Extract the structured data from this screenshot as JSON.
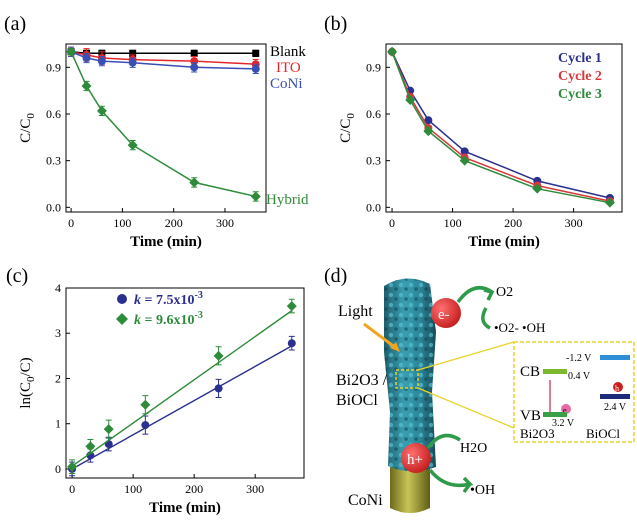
{
  "chart_data": [
    {
      "panel": "(a)",
      "type": "line",
      "xlabel": "Time (min)",
      "ylabel": "C/C0",
      "xlim": [
        -10,
        380
      ],
      "ylim": [
        -0.03,
        1.05
      ],
      "xticks": [
        "0",
        "100",
        "200",
        "300"
      ],
      "yticks": [
        "0.0",
        "0.3",
        "0.6",
        "0.9"
      ],
      "legend_placement": "inline, right end of each curve",
      "series": [
        {
          "name": "Blank",
          "color": "#000000",
          "marker": "square",
          "x": [
            0,
            30,
            60,
            120,
            240,
            360
          ],
          "y": [
            1.0,
            0.99,
            0.99,
            0.99,
            0.99,
            0.99
          ],
          "err": [
            0.02,
            0.02,
            0.02,
            0.02,
            0.02,
            0.02
          ]
        },
        {
          "name": "ITO",
          "color": "#e4262a",
          "marker": "circle",
          "x": [
            0,
            30,
            60,
            120,
            240,
            360
          ],
          "y": [
            1.0,
            0.98,
            0.96,
            0.95,
            0.94,
            0.92
          ],
          "err": [
            0.03,
            0.04,
            0.04,
            0.03,
            0.03,
            0.03
          ]
        },
        {
          "name": "CoNi",
          "color": "#3a4fb4",
          "marker": "circle",
          "x": [
            0,
            30,
            60,
            120,
            240,
            360
          ],
          "y": [
            1.0,
            0.96,
            0.94,
            0.93,
            0.9,
            0.89
          ],
          "err": [
            0.03,
            0.03,
            0.03,
            0.03,
            0.03,
            0.03
          ]
        },
        {
          "name": "Hybrid",
          "color": "#2e8b3a",
          "marker": "diamond",
          "x": [
            0,
            30,
            60,
            120,
            240,
            360
          ],
          "y": [
            1.0,
            0.78,
            0.62,
            0.4,
            0.16,
            0.07
          ],
          "err": [
            0.02,
            0.03,
            0.03,
            0.03,
            0.03,
            0.03
          ]
        }
      ]
    },
    {
      "panel": "(b)",
      "type": "line",
      "xlabel": "Time (min)",
      "ylabel": "C/C0",
      "xlim": [
        -10,
        380
      ],
      "ylim": [
        -0.03,
        1.05
      ],
      "xticks": [
        "0",
        "100",
        "200",
        "300"
      ],
      "yticks": [
        "0.0",
        "0.3",
        "0.6",
        "0.9"
      ],
      "legend_placement": "top-right",
      "series": [
        {
          "name": "Cycle 1",
          "color": "#2b2f8f",
          "marker": "circle",
          "x": [
            0,
            30,
            60,
            120,
            240,
            360
          ],
          "y": [
            1.0,
            0.75,
            0.56,
            0.36,
            0.17,
            0.06
          ]
        },
        {
          "name": "Cycle 2",
          "color": "#d6393b",
          "marker": "circle",
          "x": [
            0,
            30,
            60,
            120,
            240,
            360
          ],
          "y": [
            1.0,
            0.71,
            0.51,
            0.32,
            0.14,
            0.04
          ]
        },
        {
          "name": "Cycle 3",
          "color": "#2e8b3a",
          "marker": "diamond",
          "x": [
            0,
            30,
            60,
            120,
            240,
            360
          ],
          "y": [
            1.0,
            0.69,
            0.49,
            0.3,
            0.12,
            0.03
          ]
        }
      ]
    },
    {
      "panel": "(c)",
      "type": "scatter",
      "xlabel": "Time (min)",
      "ylabel": "ln(C0/C)",
      "xlim": [
        -10,
        380
      ],
      "ylim": [
        -0.2,
        4
      ],
      "xticks": [
        "0",
        "100",
        "200",
        "300"
      ],
      "yticks": [
        "0",
        "1",
        "2",
        "3",
        "4"
      ],
      "legend_placement": "top-left",
      "series": [
        {
          "name": "k = 7.5x10-3",
          "color": "#2b2f8f",
          "marker": "circle",
          "x": [
            0,
            30,
            60,
            120,
            240,
            360
          ],
          "y": [
            0.0,
            0.3,
            0.55,
            0.97,
            1.78,
            2.78
          ],
          "err": [
            0.15,
            0.15,
            0.15,
            0.2,
            0.2,
            0.15
          ],
          "fit": [
            0.0,
            2.72
          ]
        },
        {
          "name": "k = 9.6x10-3",
          "color": "#2e8b3a",
          "marker": "diamond",
          "x": [
            0,
            30,
            60,
            120,
            240,
            360
          ],
          "y": [
            0.05,
            0.5,
            0.88,
            1.42,
            2.5,
            3.6
          ],
          "err": [
            0.15,
            0.15,
            0.2,
            0.2,
            0.2,
            0.15
          ],
          "fit": [
            0.06,
            3.5
          ]
        }
      ]
    }
  ],
  "panel_a": {
    "label": "(a)",
    "legend": {
      "blank": "Blank",
      "ito": "ITO",
      "coni": "CoNi",
      "hybrid": "Hybrid"
    }
  },
  "panel_b": {
    "label": "(b)",
    "legend": {
      "c1": "Cycle 1",
      "c2": "Cycle 2",
      "c3": "Cycle 3"
    }
  },
  "panel_c": {
    "label": "(c)",
    "legend": {
      "k_prefix": "k",
      "k1_value": " = 7.5x10",
      "k1_exp": "-3",
      "k2_value": " = 9.6x10",
      "k2_exp": "-3"
    }
  },
  "panel_d": {
    "label": "(d)",
    "light": "Light",
    "layer_line1": "Bi2O3 /",
    "layer_line2": "BiOCl",
    "coni": "CoNi",
    "electron": "e-",
    "hole": "h+",
    "o2": "O2",
    "o2_product": "•O2- •OH",
    "h2o": "H2O",
    "oh_product": "•OH",
    "inset": {
      "cb": "CB",
      "vb": "VB",
      "bi2o3": "Bi2O3",
      "biocl": "BiOCl",
      "v_cb_biocl": "-1.2 V",
      "v_cb_bi2o3": "0.4 V",
      "v_vb_biocl": "2.4 V",
      "v_vb_bi2o3": "3.2 V",
      "e": "e",
      "h": "h"
    }
  }
}
